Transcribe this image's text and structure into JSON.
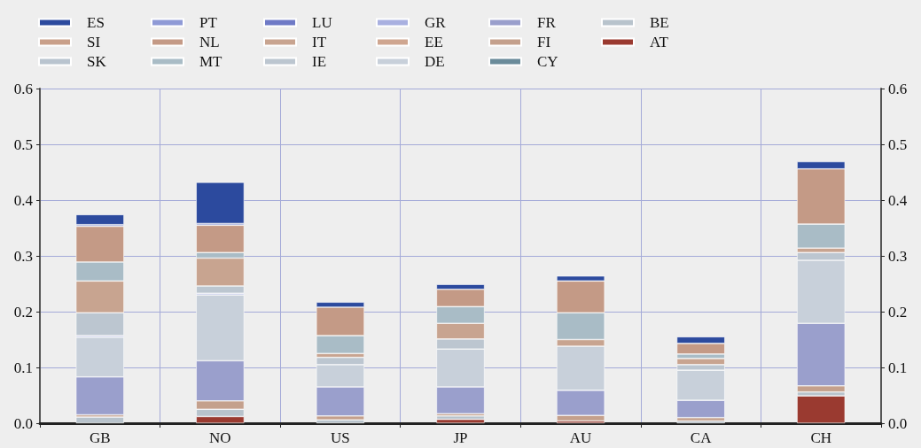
{
  "chart_data": {
    "type": "bar",
    "stacked": true,
    "categories": [
      "GB",
      "NO",
      "US",
      "JP",
      "AU",
      "CA",
      "CH"
    ],
    "series": [
      {
        "name": "AT",
        "color": "#9a3a30",
        "values": [
          null,
          0.012,
          null,
          0.007,
          0.004,
          null,
          0.049
        ]
      },
      {
        "name": "BE",
        "color": "#b8c3cc",
        "values": [
          0.011,
          0.013,
          0.006,
          0.006,
          null,
          0.004,
          0.007
        ]
      },
      {
        "name": "CY",
        "color": "#6a8b9a",
        "values": [
          null,
          null,
          null,
          null,
          null,
          null,
          null
        ]
      },
      {
        "name": "FI",
        "color": "#c4a08c",
        "values": [
          0.004,
          0.015,
          0.007,
          0.004,
          0.01,
          0.006,
          0.011
        ]
      },
      {
        "name": "FR",
        "color": "#9a9fcc",
        "values": [
          0.068,
          0.072,
          0.052,
          0.048,
          0.045,
          0.031,
          0.112
        ]
      },
      {
        "name": "DE",
        "color": "#c8d0da",
        "values": [
          0.071,
          0.118,
          0.04,
          0.068,
          0.079,
          0.054,
          0.113
        ]
      },
      {
        "name": "EE",
        "color": "#cfa690",
        "values": [
          null,
          null,
          null,
          null,
          null,
          null,
          null
        ]
      },
      {
        "name": "GR",
        "color": "#a9b0e0",
        "values": [
          0.003,
          0.003,
          null,
          null,
          null,
          null,
          null
        ]
      },
      {
        "name": "IE",
        "color": "#bcc6d0",
        "values": [
          0.041,
          0.013,
          0.013,
          0.018,
          null,
          0.01,
          0.014
        ]
      },
      {
        "name": "IT",
        "color": "#c8a490",
        "values": [
          0.057,
          0.05,
          0.007,
          0.028,
          0.012,
          0.011,
          0.008
        ]
      },
      {
        "name": "LU",
        "color": "#6f7ac6",
        "values": [
          null,
          null,
          null,
          null,
          null,
          null,
          null
        ]
      },
      {
        "name": "MT",
        "color": "#a9bcc6",
        "values": [
          0.034,
          0.01,
          0.032,
          0.03,
          0.048,
          0.008,
          0.043
        ]
      },
      {
        "name": "NL",
        "color": "#c49a86",
        "values": [
          0.064,
          0.049,
          0.051,
          0.031,
          0.057,
          0.019,
          0.099
        ]
      },
      {
        "name": "PT",
        "color": "#8f9ad6",
        "values": [
          0.003,
          0.003,
          null,
          null,
          null,
          null,
          null
        ]
      },
      {
        "name": "SK",
        "color": "#b9c4cf",
        "values": [
          null,
          null,
          null,
          null,
          null,
          null,
          null
        ]
      },
      {
        "name": "SI",
        "color": "#c9a08a",
        "values": [
          null,
          null,
          null,
          null,
          null,
          null,
          null
        ]
      },
      {
        "name": "ES",
        "color": "#2c4a9e",
        "values": [
          0.018,
          0.074,
          0.009,
          0.009,
          0.009,
          0.012,
          0.013
        ]
      }
    ],
    "ylim": [
      0,
      0.6
    ],
    "yticks": [
      {
        "value": 0,
        "label": "0.0"
      },
      0.1,
      0.2,
      0.3,
      0.4,
      0.5,
      0.6
    ],
    "y2lim": [
      0,
      0.6
    ],
    "y2ticks": [
      {
        "value": 0,
        "label": "0.0"
      },
      0.1,
      0.2,
      0.3,
      0.4,
      0.5,
      0.6
    ],
    "grid": true,
    "legend": "top left"
  }
}
